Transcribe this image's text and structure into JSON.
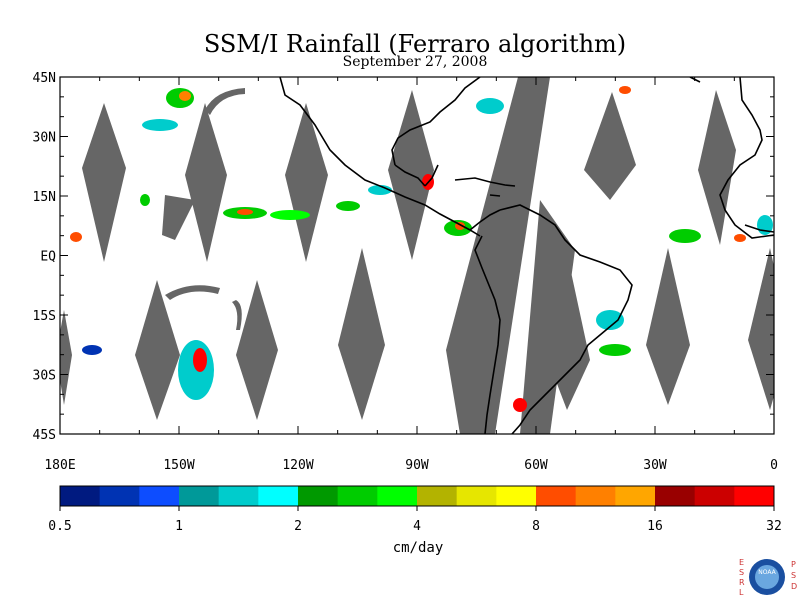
{
  "title": "SSM/I Rainfall (Ferraro algorithm)",
  "subtitle": "September 27, 2008",
  "map": {
    "lat_labels": [
      "45N",
      "30N",
      "15N",
      "EQ",
      "15S",
      "30S",
      "45S"
    ],
    "lat_values": [
      45,
      30,
      15,
      0,
      -15,
      -30,
      -45
    ],
    "lon_labels": [
      "180E",
      "150W",
      "120W",
      "90W",
      "60W",
      "30W",
      "0"
    ],
    "lon_values": [
      -180,
      -150,
      -120,
      -90,
      -60,
      -30,
      0
    ],
    "extent": {
      "lon_min": -180,
      "lon_max": 0,
      "lat_min": -45,
      "lat_max": 45
    },
    "gap_color": "#666666",
    "coast_color": "#000000"
  },
  "colorbar": {
    "units": "cm/day",
    "tick_labels": [
      "0.5",
      "1",
      "2",
      "4",
      "8",
      "16",
      "32"
    ],
    "colors": [
      "#001a80",
      "#0033b3",
      "#0d4dff",
      "#009999",
      "#00cccc",
      "#00ffff",
      "#009900",
      "#00cc00",
      "#00ff00",
      "#b3b300",
      "#e6e600",
      "#ffff00",
      "#ff4d00",
      "#ff8000",
      "#ffa600",
      "#990000",
      "#cc0000",
      "#ff0000"
    ]
  },
  "logo": {
    "left_letters": [
      "E",
      "S",
      "R",
      "L"
    ],
    "right_letters": [
      "P",
      "S",
      "D"
    ],
    "center_text": "NOAA"
  }
}
